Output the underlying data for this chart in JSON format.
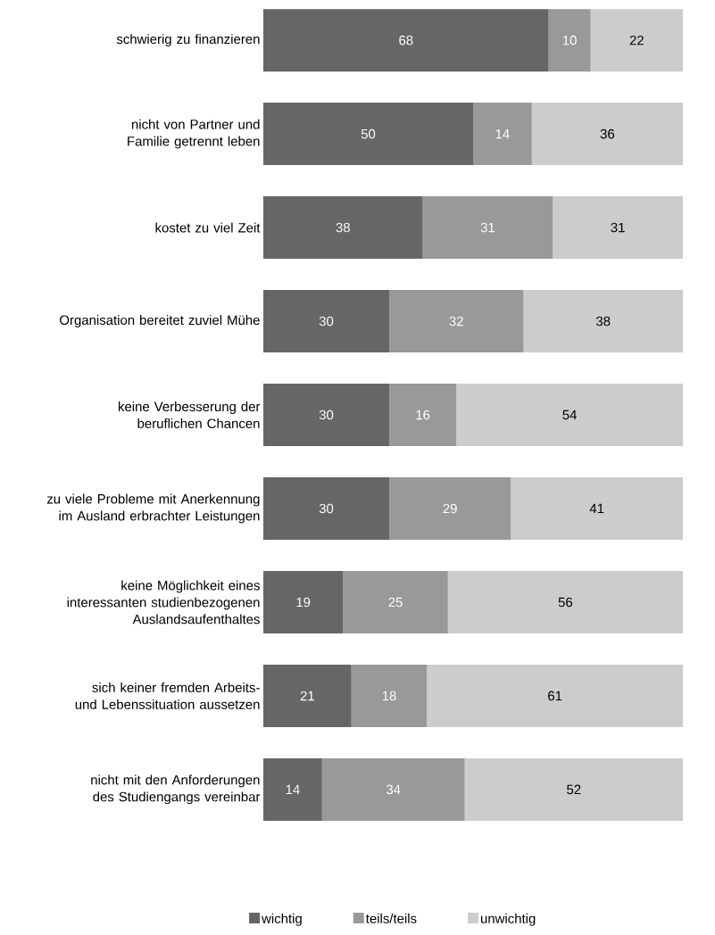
{
  "chart_data": {
    "type": "bar",
    "orientation": "horizontal",
    "stacked": true,
    "data_labels": true,
    "legend": "bottom",
    "categories": [
      "schwierig zu finanzieren",
      "nicht von Partner und Familie getrennt leben",
      "kostet zu viel Zeit",
      "Organisation bereitet zuviel Mühe",
      "keine Verbesserung der beruflichen Chancen",
      "zu viele Probleme mit Anerkennung im Ausland erbrachter Leistungen",
      "keine Möglichkeit eines interessanten studienbezogenen Auslandsaufenthaltes",
      "sich keiner fremden Arbeits- und Lebenssituation aussetzen",
      "nicht mit den Anforderungen des Studiengangs vereinbar"
    ],
    "series": [
      {
        "name": "wichtig",
        "color": "#666666",
        "values": [
          68,
          50,
          38,
          30,
          30,
          30,
          19,
          21,
          14
        ]
      },
      {
        "name": "teils/teils",
        "color": "#999999",
        "values": [
          10,
          14,
          31,
          32,
          16,
          29,
          25,
          18,
          34
        ]
      },
      {
        "name": "unwichtig",
        "color": "#cccccc",
        "values": [
          22,
          36,
          31,
          38,
          54,
          41,
          56,
          61,
          52
        ]
      }
    ]
  }
}
